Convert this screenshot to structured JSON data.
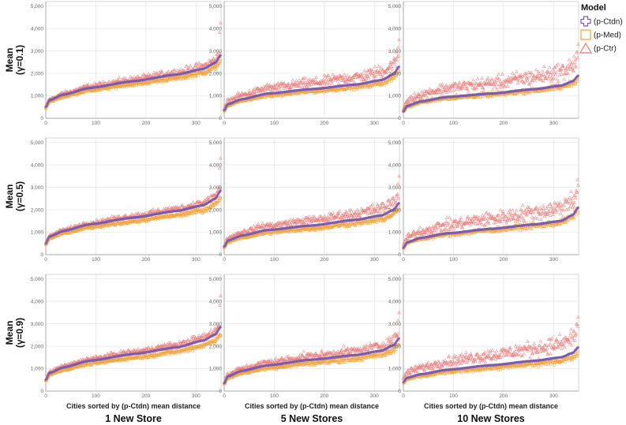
{
  "chart_data": {
    "type": "scatter",
    "facet_rows": [
      {
        "title_line1": "Mean",
        "title_line2": "(γ=0.1)"
      },
      {
        "title_line1": "Mean",
        "title_line2": "(γ=0.5)"
      },
      {
        "title_line1": "Mean",
        "title_line2": "(γ=0.9)"
      }
    ],
    "facet_columns": [
      {
        "title": "1 New Store"
      },
      {
        "title": "5 New Stores"
      },
      {
        "title": "10 New Stores"
      }
    ],
    "xlabel": "Cities sorted by (p-Ctdn) mean distance",
    "ylabel": "",
    "x_ticks": [
      "0",
      "100",
      "200",
      "300"
    ],
    "y_ticks": [
      "0",
      "1,000",
      "2,000",
      "3,000",
      "4,000",
      "5,000"
    ],
    "xlim": [
      0,
      350
    ],
    "ylim": [
      0,
      5200
    ],
    "grid": true,
    "n_points_per_series": 350,
    "legend": {
      "title": "Model",
      "position": "top-right",
      "items": [
        {
          "label": "(p-Ctdn)",
          "shape": "plus",
          "color": "#7b5cb0"
        },
        {
          "label": "(p-Med)",
          "shape": "square",
          "color": "#f0a23a"
        },
        {
          "label": "(p-Ctr)",
          "shape": "triangle",
          "color": "#e87a78"
        }
      ]
    },
    "panels": [
      {
        "row": 0,
        "col": 0,
        "series": [
          {
            "name": "(p-Ctdn)",
            "x_first": 0,
            "x_last": 349,
            "y_first": 500,
            "y_q10": 1050,
            "y_q25": 1350,
            "y_median": 1650,
            "y_q75": 1950,
            "y_q90": 2200,
            "y_last": 2800
          },
          {
            "name": "(p-Med)",
            "relative_to_ctdn": 0.92,
            "spread": 0.08
          },
          {
            "name": "(p-Ctr)",
            "relative_to_ctdn": 1.05,
            "spread": 0.12,
            "max": 4250
          }
        ]
      },
      {
        "row": 0,
        "col": 1,
        "series": [
          {
            "name": "(p-Ctdn)",
            "x_first": 0,
            "x_last": 349,
            "y_first": 350,
            "y_q10": 850,
            "y_q25": 1100,
            "y_median": 1300,
            "y_q75": 1500,
            "y_q90": 1700,
            "y_last": 2300
          },
          {
            "name": "(p-Med)",
            "relative_to_ctdn": 0.92,
            "spread": 0.1
          },
          {
            "name": "(p-Ctr)",
            "relative_to_ctdn": 1.22,
            "spread": 0.2,
            "max": 3500
          }
        ]
      },
      {
        "row": 0,
        "col": 2,
        "series": [
          {
            "name": "(p-Ctdn)",
            "x_first": 0,
            "x_last": 349,
            "y_first": 300,
            "y_q10": 750,
            "y_q25": 950,
            "y_median": 1100,
            "y_q75": 1300,
            "y_q90": 1450,
            "y_last": 1900
          },
          {
            "name": "(p-Med)",
            "relative_to_ctdn": 0.95,
            "spread": 0.12
          },
          {
            "name": "(p-Ctr)",
            "relative_to_ctdn": 1.42,
            "spread": 0.28,
            "max": 3300
          }
        ]
      },
      {
        "row": 1,
        "col": 0,
        "series": [
          {
            "name": "(p-Ctdn)",
            "x_first": 0,
            "x_last": 349,
            "y_first": 500,
            "y_q10": 1050,
            "y_q25": 1350,
            "y_median": 1650,
            "y_q75": 1950,
            "y_q90": 2200,
            "y_last": 2850
          },
          {
            "name": "(p-Med)",
            "relative_to_ctdn": 0.9,
            "spread": 0.08
          },
          {
            "name": "(p-Ctr)",
            "relative_to_ctdn": 1.05,
            "spread": 0.1,
            "max": 4300
          }
        ]
      },
      {
        "row": 1,
        "col": 1,
        "series": [
          {
            "name": "(p-Ctdn)",
            "x_first": 0,
            "x_last": 349,
            "y_first": 350,
            "y_q10": 850,
            "y_q25": 1100,
            "y_median": 1300,
            "y_q75": 1550,
            "y_q90": 1750,
            "y_last": 2300
          },
          {
            "name": "(p-Med)",
            "relative_to_ctdn": 0.9,
            "spread": 0.12
          },
          {
            "name": "(p-Ctr)",
            "relative_to_ctdn": 1.18,
            "spread": 0.18,
            "max": 3500
          }
        ]
      },
      {
        "row": 1,
        "col": 2,
        "series": [
          {
            "name": "(p-Ctdn)",
            "x_first": 0,
            "x_last": 349,
            "y_first": 300,
            "y_q10": 750,
            "y_q25": 950,
            "y_median": 1150,
            "y_q75": 1350,
            "y_q90": 1500,
            "y_last": 2100
          },
          {
            "name": "(p-Med)",
            "relative_to_ctdn": 0.95,
            "spread": 0.14
          },
          {
            "name": "(p-Ctr)",
            "relative_to_ctdn": 1.4,
            "spread": 0.28,
            "max": 3100
          }
        ]
      },
      {
        "row": 2,
        "col": 0,
        "series": [
          {
            "name": "(p-Ctdn)",
            "x_first": 0,
            "x_last": 349,
            "y_first": 500,
            "y_q10": 1050,
            "y_q25": 1350,
            "y_median": 1650,
            "y_q75": 1950,
            "y_q90": 2250,
            "y_last": 2850
          },
          {
            "name": "(p-Med)",
            "relative_to_ctdn": 0.9,
            "spread": 0.08
          },
          {
            "name": "(p-Ctr)",
            "relative_to_ctdn": 1.06,
            "spread": 0.1,
            "max": 4250
          }
        ]
      },
      {
        "row": 2,
        "col": 1,
        "series": [
          {
            "name": "(p-Ctdn)",
            "x_first": 0,
            "x_last": 349,
            "y_first": 350,
            "y_q10": 900,
            "y_q25": 1150,
            "y_median": 1400,
            "y_q75": 1600,
            "y_q90": 1800,
            "y_last": 2350
          },
          {
            "name": "(p-Med)",
            "relative_to_ctdn": 0.9,
            "spread": 0.12
          },
          {
            "name": "(p-Ctr)",
            "relative_to_ctdn": 1.12,
            "spread": 0.16,
            "max": 3500
          }
        ]
      },
      {
        "row": 2,
        "col": 2,
        "series": [
          {
            "name": "(p-Ctdn)",
            "x_first": 0,
            "x_last": 349,
            "y_first": 400,
            "y_q10": 750,
            "y_q25": 950,
            "y_median": 1150,
            "y_q75": 1350,
            "y_q90": 1500,
            "y_last": 1950
          },
          {
            "name": "(p-Med)",
            "relative_to_ctdn": 0.9,
            "spread": 0.14
          },
          {
            "name": "(p-Ctr)",
            "relative_to_ctdn": 1.4,
            "spread": 0.26,
            "max": 3300
          }
        ]
      }
    ]
  }
}
